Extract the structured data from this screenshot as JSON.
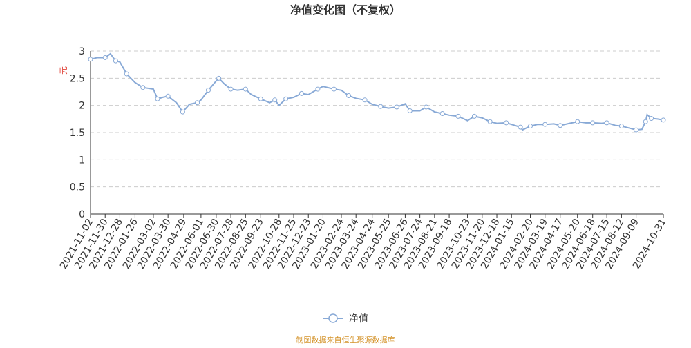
{
  "chart_data": {
    "type": "line",
    "title": "净值变化图（不复权）",
    "y_label": "元",
    "source": "制图数据来自恒生聚源数据库",
    "x": [
      "2021-11-02",
      "2021-11-15",
      "2021-11-30",
      "2021-12-10",
      "2021-12-20",
      "2021-12-28",
      "2022-01-10",
      "2022-01-26",
      "2022-02-10",
      "2022-03-02",
      "2022-03-10",
      "2022-03-20",
      "2022-03-30",
      "2022-04-15",
      "2022-04-27",
      "2022-05-10",
      "2022-05-25",
      "2022-06-01",
      "2022-06-15",
      "2022-06-30",
      "2022-07-05",
      "2022-07-15",
      "2022-07-28",
      "2022-08-10",
      "2022-08-25",
      "2022-09-05",
      "2022-09-23",
      "2022-10-10",
      "2022-10-20",
      "2022-10-28",
      "2022-11-10",
      "2022-11-25",
      "2022-12-10",
      "2022-12-23",
      "2023-01-10",
      "2023-01-20",
      "2023-02-10",
      "2023-02-24",
      "2023-03-10",
      "2023-03-24",
      "2023-04-10",
      "2023-04-24",
      "2023-05-10",
      "2023-05-25",
      "2023-06-10",
      "2023-06-26",
      "2023-07-05",
      "2023-07-24",
      "2023-08-05",
      "2023-08-21",
      "2023-09-05",
      "2023-09-18",
      "2023-10-05",
      "2023-10-23",
      "2023-11-05",
      "2023-11-20",
      "2023-12-05",
      "2023-12-18",
      "2024-01-05",
      "2024-01-15",
      "2024-02-01",
      "2024-02-05",
      "2024-02-20",
      "2024-03-05",
      "2024-03-19",
      "2024-04-05",
      "2024-04-17",
      "2024-05-05",
      "2024-05-20",
      "2024-06-05",
      "2024-06-18",
      "2024-07-05",
      "2024-07-15",
      "2024-08-01",
      "2024-08-12",
      "2024-08-28",
      "2024-09-09",
      "2024-09-20",
      "2024-09-27",
      "2024-09-30",
      "2024-10-08",
      "2024-10-20",
      "2024-10-31"
    ],
    "series": [
      {
        "name": "净值",
        "color": "#88a9d6",
        "values": [
          2.85,
          2.88,
          2.88,
          2.95,
          2.82,
          2.8,
          2.58,
          2.42,
          2.33,
          2.3,
          2.12,
          2.15,
          2.17,
          2.05,
          1.88,
          2.02,
          2.05,
          2.1,
          2.28,
          2.45,
          2.5,
          2.4,
          2.3,
          2.28,
          2.3,
          2.2,
          2.12,
          2.05,
          2.1,
          2.0,
          2.12,
          2.15,
          2.22,
          2.2,
          2.3,
          2.35,
          2.3,
          2.28,
          2.18,
          2.13,
          2.1,
          2.02,
          1.98,
          1.95,
          1.97,
          2.03,
          1.9,
          1.9,
          1.97,
          1.88,
          1.85,
          1.82,
          1.8,
          1.72,
          1.8,
          1.77,
          1.7,
          1.67,
          1.68,
          1.65,
          1.6,
          1.55,
          1.62,
          1.65,
          1.65,
          1.66,
          1.63,
          1.67,
          1.7,
          1.68,
          1.68,
          1.67,
          1.68,
          1.63,
          1.62,
          1.58,
          1.55,
          1.56,
          1.7,
          1.83,
          1.76,
          1.75,
          1.73
        ]
      }
    ],
    "xlim": [
      "2021-11-02",
      "2024-10-31"
    ],
    "xticks": [
      "2021-11-02",
      "2021-11-30",
      "2021-12-28",
      "2022-01-26",
      "2022-03-02",
      "2022-03-30",
      "2022-04-29",
      "2022-06-01",
      "2022-06-30",
      "2022-07-28",
      "2022-08-25",
      "2022-09-23",
      "2022-10-28",
      "2022-11-25",
      "2022-12-23",
      "2023-01-20",
      "2023-02-24",
      "2023-03-24",
      "2023-04-24",
      "2023-05-25",
      "2023-06-26",
      "2023-07-24",
      "2023-08-21",
      "2023-09-18",
      "2023-10-23",
      "2023-11-20",
      "2023-12-18",
      "2024-01-15",
      "2024-02-20",
      "2024-03-19",
      "2024-04-17",
      "2024-05-20",
      "2024-06-18",
      "2024-07-15",
      "2024-08-12",
      "2024-09-09",
      "2024-10-31"
    ],
    "ylim": [
      0,
      3
    ],
    "yticks": [
      0,
      0.5,
      1,
      1.5,
      2,
      2.5,
      3
    ],
    "grid": true
  }
}
